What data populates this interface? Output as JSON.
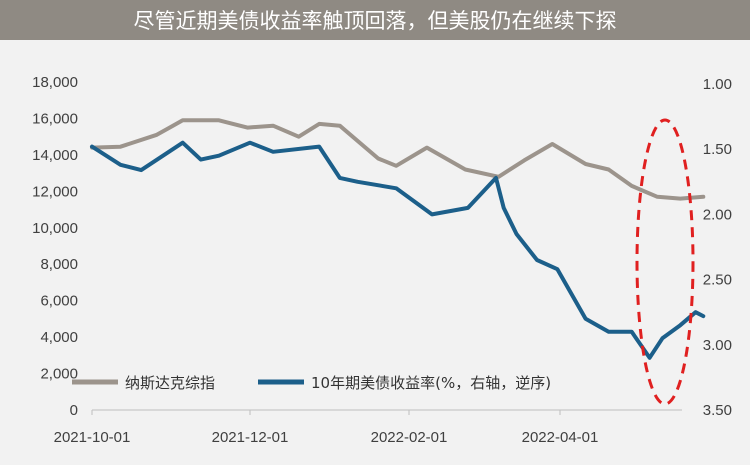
{
  "title": "尽管近期美债收益率触顶回落，但美股仍在继续下探",
  "colors": {
    "title_bg": "#8f8a83",
    "nasdaq": "#9c948c",
    "yield": "#1c5f8a",
    "highlight": "#e02020"
  },
  "chart_data": {
    "type": "line",
    "x_tick_labels": [
      "2021-10-01",
      "2021-12-01",
      "2022-02-01",
      "2022-04-01"
    ],
    "x_ticks": [
      "2021-10-01",
      "2021-12-01",
      "2022-02-01",
      "2022-04-01"
    ],
    "x_range": [
      "2021-10-01",
      "2022-05-31"
    ],
    "left_axis": {
      "ticks": [
        0,
        2000,
        4000,
        6000,
        8000,
        10000,
        12000,
        14000,
        16000,
        18000
      ],
      "tick_labels": [
        "0",
        "2,000",
        "4,000",
        "6,000",
        "8,000",
        "10,000",
        "12,000",
        "14,000",
        "16,000",
        "18,000"
      ],
      "ylim": [
        0,
        18000
      ]
    },
    "right_axis": {
      "ticks": [
        1.0,
        1.5,
        2.0,
        2.5,
        3.0,
        3.5
      ],
      "tick_labels": [
        "1.00",
        "1.50",
        "2.00",
        "2.50",
        "3.00",
        "3.50"
      ],
      "ylim": [
        1.0,
        3.5
      ],
      "reversed": true
    },
    "legend_position": "bottom-left",
    "series": [
      {
        "name": "纳斯达克综指",
        "axis": "left",
        "x": [
          "2021-10-01",
          "2021-10-12",
          "2021-10-26",
          "2021-11-05",
          "2021-11-19",
          "2021-11-30",
          "2021-12-10",
          "2021-12-20",
          "2021-12-28",
          "2022-01-05",
          "2022-01-20",
          "2022-01-27",
          "2022-02-08",
          "2022-02-23",
          "2022-03-08",
          "2022-03-18",
          "2022-03-29",
          "2022-04-11",
          "2022-04-20",
          "2022-04-29",
          "2022-05-09",
          "2022-05-18",
          "2022-05-27"
        ],
        "values": [
          14400,
          14450,
          15100,
          15900,
          15900,
          15500,
          15600,
          15000,
          15700,
          15600,
          13800,
          13400,
          14400,
          13200,
          12800,
          13700,
          14600,
          13500,
          13200,
          12300,
          11700,
          11600,
          11700
        ]
      },
      {
        "name": "10年期美债收益率(%，右轴，逆序)",
        "axis": "right",
        "x": [
          "2021-10-01",
          "2021-10-12",
          "2021-10-20",
          "2021-11-05",
          "2021-11-12",
          "2021-11-19",
          "2021-12-01",
          "2021-12-10",
          "2021-12-28",
          "2022-01-05",
          "2022-01-12",
          "2022-01-27",
          "2022-02-10",
          "2022-02-24",
          "2022-03-07",
          "2022-03-10",
          "2022-03-15",
          "2022-03-23",
          "2022-03-31",
          "2022-04-11",
          "2022-04-20",
          "2022-04-29",
          "2022-05-06",
          "2022-05-11",
          "2022-05-18",
          "2022-05-24",
          "2022-05-27"
        ],
        "values": [
          1.48,
          1.62,
          1.66,
          1.45,
          1.58,
          1.55,
          1.45,
          1.52,
          1.48,
          1.72,
          1.75,
          1.8,
          2.0,
          1.95,
          1.72,
          1.95,
          2.15,
          2.35,
          2.42,
          2.8,
          2.9,
          2.9,
          3.1,
          2.95,
          2.85,
          2.75,
          2.78
        ]
      }
    ]
  },
  "legend": [
    {
      "label": "纳斯达克综指"
    },
    {
      "label": "10年期美债收益率(%，右轴，逆序)"
    }
  ]
}
